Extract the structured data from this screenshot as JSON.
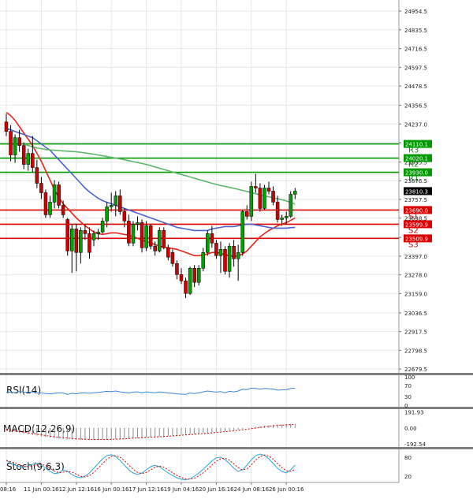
{
  "colors": {
    "bull": "#00a000",
    "bear": "#cc0000",
    "wick": "#000000",
    "resistance": "#009900",
    "support": "#dd0000",
    "ma_fast": "#e8251d",
    "ma_mid": "#4a64d0",
    "ma_slow": "#5cb86a",
    "rsi": "#3a86d8",
    "macd_signal": "#dd0000",
    "macd_hist": "#8c8c8c",
    "stoch_k": "#2aa8d8",
    "stoch_d": "#dd0000",
    "grid": "#e6e6e6",
    "divider": "#808080"
  },
  "chart_data": {
    "type": "candlestick",
    "grid": true,
    "price_axis": {
      "ticks": [
        "24954.5",
        "24835.5",
        "24716.5",
        "24597.5",
        "24478.5",
        "24356.5",
        "24237.0",
        "24118.0",
        "23995.5",
        "23876.5",
        "23757.5",
        "23638.5",
        "23516.5",
        "23397.0",
        "23278.0",
        "23159.0",
        "23036.5",
        "22917.5",
        "22798.5",
        "22679.5"
      ],
      "tick_values": [
        24954.5,
        24835.5,
        24716.5,
        24597.5,
        24478.5,
        24356.5,
        24237.0,
        24118.0,
        23995.5,
        23876.5,
        23757.5,
        23638.5,
        23516.5,
        23397.0,
        23278.0,
        23159.0,
        23036.5,
        22917.5,
        22798.5,
        22679.5
      ],
      "range": [
        22660,
        24995
      ]
    },
    "time_axis": {
      "labels": [
        "08:16",
        "11 Jun 00:16",
        "12 Jun 12:16",
        "16 Jun 00:16",
        "17 Jun 12:16",
        "19 Jun 04:16",
        "20 Jun 16:16",
        "24 Jun 08:16",
        "26 Jun 00:16"
      ],
      "label_index": [
        0,
        8,
        16,
        24,
        32,
        40,
        48,
        56,
        64
      ]
    },
    "levels": [
      {
        "name": "R3",
        "value": 24110.1,
        "label": "24110.1",
        "kind": "resistance"
      },
      {
        "name": "R2",
        "value": 24020.1,
        "label": "24020.1",
        "kind": "resistance"
      },
      {
        "name": "R1",
        "value": 23930.0,
        "label": "23930.0",
        "kind": "resistance"
      },
      {
        "name": "S1",
        "value": 23690.0,
        "label": "23690.0",
        "kind": "support"
      },
      {
        "name": "S2",
        "value": 23599.9,
        "label": "23599.9",
        "kind": "support"
      },
      {
        "name": "S3",
        "value": 23509.9,
        "label": "23509.9",
        "kind": "support"
      }
    ],
    "current_price": {
      "value": 23810.3,
      "label": "23810.3"
    },
    "candles": [
      {
        "o": 24250,
        "h": 24300,
        "l": 24160,
        "c": 24190
      },
      {
        "o": 24190,
        "h": 24230,
        "l": 24000,
        "c": 24040
      },
      {
        "o": 24040,
        "h": 24170,
        "l": 23990,
        "c": 24150
      },
      {
        "o": 24150,
        "h": 24200,
        "l": 24060,
        "c": 24100
      },
      {
        "o": 24100,
        "h": 24120,
        "l": 23950,
        "c": 23980
      },
      {
        "o": 23980,
        "h": 24080,
        "l": 23940,
        "c": 24050
      },
      {
        "o": 24050,
        "h": 24160,
        "l": 23930,
        "c": 23960
      },
      {
        "o": 23960,
        "h": 24010,
        "l": 23830,
        "c": 23860
      },
      {
        "o": 23860,
        "h": 23900,
        "l": 23760,
        "c": 23800
      },
      {
        "o": 23800,
        "h": 23820,
        "l": 23640,
        "c": 23660
      },
      {
        "o": 23660,
        "h": 23780,
        "l": 23640,
        "c": 23740
      },
      {
        "o": 23740,
        "h": 23880,
        "l": 23700,
        "c": 23850
      },
      {
        "o": 23850,
        "h": 23870,
        "l": 23700,
        "c": 23720
      },
      {
        "o": 23720,
        "h": 23750,
        "l": 23640,
        "c": 23660
      },
      {
        "o": 23630,
        "h": 23640,
        "l": 23400,
        "c": 23430
      },
      {
        "o": 23430,
        "h": 23600,
        "l": 23290,
        "c": 23570
      },
      {
        "o": 23570,
        "h": 23600,
        "l": 23300,
        "c": 23420
      },
      {
        "o": 23420,
        "h": 23580,
        "l": 23350,
        "c": 23560
      },
      {
        "o": 23560,
        "h": 23600,
        "l": 23500,
        "c": 23540
      },
      {
        "o": 23540,
        "h": 23580,
        "l": 23380,
        "c": 23420
      },
      {
        "o": 23500,
        "h": 23560,
        "l": 23460,
        "c": 23540
      },
      {
        "o": 23540,
        "h": 23570,
        "l": 23500,
        "c": 23550
      },
      {
        "o": 23550,
        "h": 23640,
        "l": 23540,
        "c": 23620
      },
      {
        "o": 23620,
        "h": 23740,
        "l": 23580,
        "c": 23710
      },
      {
        "o": 23710,
        "h": 23800,
        "l": 23680,
        "c": 23720
      },
      {
        "o": 23720,
        "h": 23810,
        "l": 23650,
        "c": 23780
      },
      {
        "o": 23780,
        "h": 23820,
        "l": 23660,
        "c": 23680
      },
      {
        "o": 23680,
        "h": 23700,
        "l": 23580,
        "c": 23620
      },
      {
        "o": 23620,
        "h": 23660,
        "l": 23460,
        "c": 23480
      },
      {
        "o": 23480,
        "h": 23620,
        "l": 23460,
        "c": 23600
      },
      {
        "o": 23600,
        "h": 23650,
        "l": 23560,
        "c": 23610
      },
      {
        "o": 23610,
        "h": 23630,
        "l": 23420,
        "c": 23450
      },
      {
        "o": 23450,
        "h": 23620,
        "l": 23430,
        "c": 23590
      },
      {
        "o": 23590,
        "h": 23600,
        "l": 23440,
        "c": 23460
      },
      {
        "o": 23460,
        "h": 23490,
        "l": 23400,
        "c": 23430
      },
      {
        "o": 23430,
        "h": 23580,
        "l": 23420,
        "c": 23560
      },
      {
        "o": 23560,
        "h": 23580,
        "l": 23440,
        "c": 23450
      },
      {
        "o": 23450,
        "h": 23470,
        "l": 23370,
        "c": 23390
      },
      {
        "o": 23420,
        "h": 23440,
        "l": 23330,
        "c": 23350
      },
      {
        "o": 23350,
        "h": 23370,
        "l": 23250,
        "c": 23280
      },
      {
        "o": 23280,
        "h": 23320,
        "l": 23220,
        "c": 23240
      },
      {
        "o": 23240,
        "h": 23260,
        "l": 23130,
        "c": 23160
      },
      {
        "o": 23160,
        "h": 23330,
        "l": 23150,
        "c": 23320
      },
      {
        "o": 23320,
        "h": 23340,
        "l": 23200,
        "c": 23230
      },
      {
        "o": 23230,
        "h": 23340,
        "l": 23210,
        "c": 23320
      },
      {
        "o": 23320,
        "h": 23450,
        "l": 23300,
        "c": 23420
      },
      {
        "o": 23420,
        "h": 23560,
        "l": 23400,
        "c": 23540
      },
      {
        "o": 23540,
        "h": 23590,
        "l": 23450,
        "c": 23480
      },
      {
        "o": 23480,
        "h": 23500,
        "l": 23380,
        "c": 23400
      },
      {
        "o": 23400,
        "h": 23490,
        "l": 23290,
        "c": 23440
      },
      {
        "o": 23440,
        "h": 23460,
        "l": 23280,
        "c": 23300
      },
      {
        "o": 23300,
        "h": 23480,
        "l": 23260,
        "c": 23460
      },
      {
        "o": 23460,
        "h": 23500,
        "l": 23330,
        "c": 23380
      },
      {
        "o": 23380,
        "h": 23470,
        "l": 23240,
        "c": 23420
      },
      {
        "o": 23420,
        "h": 23690,
        "l": 23400,
        "c": 23680
      },
      {
        "o": 23680,
        "h": 23720,
        "l": 23630,
        "c": 23650
      },
      {
        "o": 23650,
        "h": 23870,
        "l": 23620,
        "c": 23840
      },
      {
        "o": 23840,
        "h": 23920,
        "l": 23800,
        "c": 23830
      },
      {
        "o": 23830,
        "h": 23860,
        "l": 23680,
        "c": 23700
      },
      {
        "o": 23700,
        "h": 23850,
        "l": 23690,
        "c": 23830
      },
      {
        "o": 23830,
        "h": 23870,
        "l": 23790,
        "c": 23810
      },
      {
        "o": 23810,
        "h": 23840,
        "l": 23720,
        "c": 23740
      },
      {
        "o": 23740,
        "h": 23780,
        "l": 23610,
        "c": 23630
      },
      {
        "o": 23630,
        "h": 23660,
        "l": 23590,
        "c": 23640
      },
      {
        "o": 23640,
        "h": 23680,
        "l": 23600,
        "c": 23650
      },
      {
        "o": 23650,
        "h": 23810,
        "l": 23640,
        "c": 23790
      },
      {
        "o": 23790,
        "h": 23830,
        "l": 23760,
        "c": 23810
      }
    ],
    "moving_averages": [
      {
        "color_key": "ma_fast",
        "values": [
          24310,
          24290,
          24260,
          24220,
          24180,
          24140,
          24100,
          24050,
          24000,
          23940,
          23880,
          23820,
          23770,
          23730,
          23700,
          23670,
          23640,
          23615,
          23590,
          23570,
          23550,
          23540,
          23535,
          23540,
          23545,
          23545,
          23540,
          23535,
          23530,
          23520,
          23510,
          23500,
          23490,
          23480,
          23470,
          23460,
          23455,
          23450,
          23445,
          23440,
          23430,
          23420,
          23410,
          23400,
          23400,
          23405,
          23410,
          23420,
          23420,
          23415,
          23405,
          23400,
          23395,
          23400,
          23410,
          23430,
          23460,
          23490,
          23520,
          23540,
          23560,
          23575,
          23590,
          23600,
          23610,
          23625,
          23640
        ]
      },
      {
        "color_key": "ma_mid",
        "values": [
          24210,
          24200,
          24190,
          24180,
          24170,
          24160,
          24150,
          24130,
          24110,
          24090,
          24070,
          24040,
          24010,
          23980,
          23950,
          23920,
          23890,
          23860,
          23830,
          23805,
          23785,
          23765,
          23750,
          23740,
          23730,
          23720,
          23710,
          23700,
          23690,
          23680,
          23670,
          23660,
          23650,
          23640,
          23630,
          23620,
          23610,
          23600,
          23590,
          23580,
          23575,
          23570,
          23565,
          23560,
          23560,
          23560,
          23560,
          23570,
          23575,
          23580,
          23585,
          23585,
          23585,
          23590,
          23595,
          23600,
          23600,
          23595,
          23590,
          23585,
          23580,
          23575,
          23575,
          23575,
          23575,
          23578,
          23580
        ]
      },
      {
        "color_key": "ma_slow",
        "startIndex": 4,
        "values": [
          24110,
          24100,
          24092,
          24085,
          24080,
          24075,
          24072,
          24070,
          24068,
          24066,
          24064,
          24062,
          24060,
          24057,
          24053,
          24049,
          24045,
          24040,
          24035,
          24030,
          24025,
          24020,
          24015,
          24010,
          24004,
          23998,
          23992,
          23986,
          23980,
          23972,
          23964,
          23956,
          23948,
          23940,
          23932,
          23924,
          23916,
          23908,
          23900,
          23892,
          23884,
          23876,
          23868,
          23860,
          23853,
          23846,
          23840,
          23834,
          23828,
          23822,
          23815,
          23808,
          23801,
          23794,
          23787,
          23780,
          23774,
          23768,
          23762,
          23756,
          23748,
          23738,
          23728
        ]
      }
    ],
    "rsi": {
      "title": "RSI(14)",
      "ticks": [
        "100",
        "70",
        "30",
        "0"
      ],
      "tick_values": [
        100,
        70,
        30,
        0
      ],
      "values": [
        45,
        46,
        44,
        48,
        46,
        45,
        47,
        44,
        43,
        41,
        40,
        42,
        44,
        43,
        38,
        42,
        40,
        43,
        44,
        42,
        44,
        45,
        47,
        49,
        48,
        50,
        47,
        45,
        43,
        46,
        47,
        44,
        47,
        45,
        44,
        47,
        45,
        43,
        42,
        40,
        39,
        38,
        43,
        41,
        44,
        47,
        50,
        48,
        46,
        48,
        44,
        49,
        47,
        50,
        56,
        55,
        60,
        59,
        56,
        59,
        58,
        57,
        53,
        54,
        55,
        59,
        60
      ]
    },
    "macd": {
      "title": "MACD(12,26,9)",
      "ticks": [
        "191.93",
        "0.00",
        "-192.54"
      ],
      "tick_values": [
        191.93,
        0.0,
        -192.54
      ],
      "range": [
        -200,
        205
      ],
      "histogram": [
        -30,
        -40,
        -50,
        -60,
        -70,
        -78,
        -86,
        -94,
        -102,
        -110,
        -118,
        -124,
        -128,
        -132,
        -136,
        -140,
        -142,
        -144,
        -145,
        -146,
        -145,
        -144,
        -142,
        -140,
        -137,
        -134,
        -131,
        -128,
        -125,
        -122,
        -119,
        -116,
        -113,
        -110,
        -107,
        -104,
        -100,
        -96,
        -92,
        -88,
        -84,
        -80,
        -76,
        -72,
        -68,
        -63,
        -58,
        -53,
        -48,
        -43,
        -38,
        -32,
        -26,
        -20,
        -12,
        -4,
        4,
        12,
        20,
        26,
        32,
        36,
        40,
        42,
        44,
        46,
        48
      ],
      "signal": [
        -20,
        -28,
        -36,
        -44,
        -52,
        -60,
        -68,
        -76,
        -84,
        -92,
        -100,
        -106,
        -112,
        -118,
        -122,
        -126,
        -130,
        -133,
        -136,
        -138,
        -139,
        -140,
        -140,
        -139,
        -137,
        -135,
        -133,
        -130,
        -127,
        -124,
        -121,
        -118,
        -115,
        -112,
        -109,
        -106,
        -103,
        -100,
        -96,
        -92,
        -88,
        -84,
        -80,
        -76,
        -72,
        -68,
        -64,
        -60,
        -55,
        -50,
        -45,
        -40,
        -35,
        -29,
        -23,
        -16,
        -9,
        -2,
        5,
        12,
        18,
        24,
        29,
        33,
        36,
        39,
        41
      ]
    },
    "stoch": {
      "title": "Stoch(9,6,3)",
      "ticks": [
        "80",
        "20"
      ],
      "tick_values": [
        80,
        20
      ],
      "k": [
        70,
        62,
        55,
        50,
        48,
        52,
        58,
        60,
        55,
        45,
        35,
        28,
        30,
        40,
        35,
        25,
        18,
        15,
        20,
        30,
        45,
        60,
        75,
        85,
        88,
        82,
        70,
        55,
        40,
        30,
        25,
        30,
        40,
        50,
        55,
        50,
        40,
        30,
        22,
        15,
        10,
        8,
        12,
        20,
        30,
        42,
        55,
        68,
        78,
        80,
        72,
        60,
        45,
        35,
        40,
        55,
        72,
        85,
        90,
        86,
        75,
        60,
        45,
        35,
        30,
        40,
        55
      ]
    }
  }
}
